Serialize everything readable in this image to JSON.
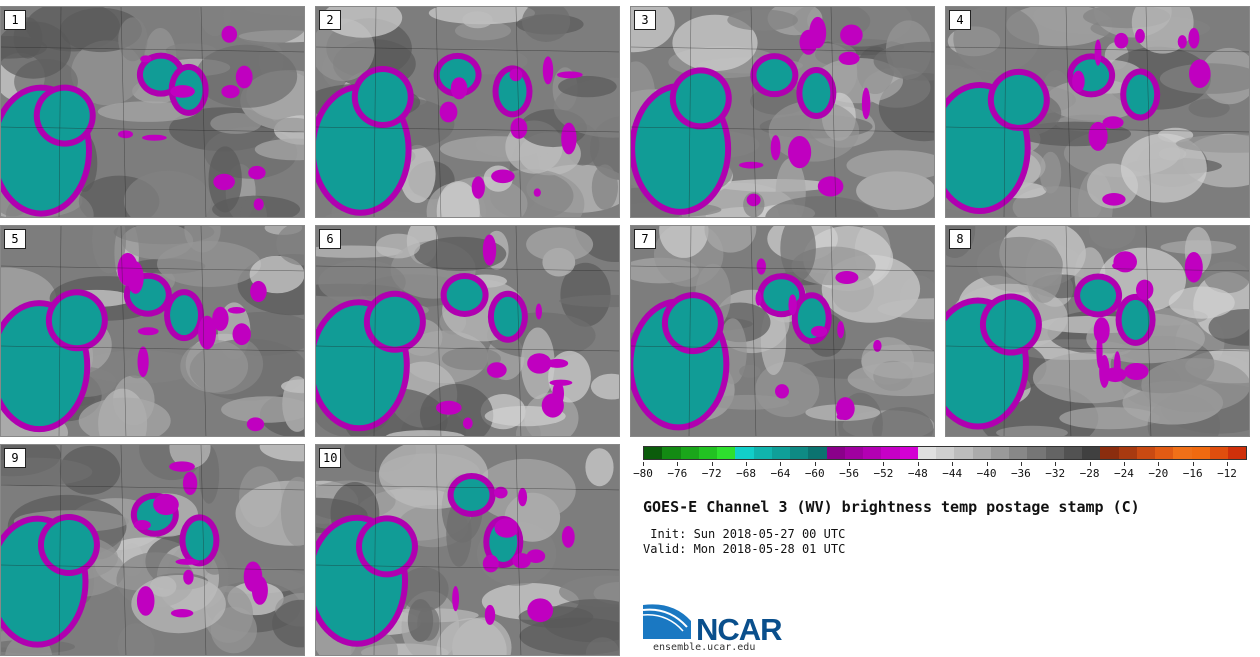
{
  "panels": [
    "1",
    "2",
    "3",
    "4",
    "5",
    "6",
    "7",
    "8",
    "9",
    "10"
  ],
  "colorbar": {
    "colors": [
      "#0b5c0b",
      "#138a13",
      "#1aa61a",
      "#22c222",
      "#2ee02e",
      "#11cfc9",
      "#10b4ad",
      "#0f9f98",
      "#0e8a84",
      "#0b7370",
      "#8a008a",
      "#a000a0",
      "#b300b3",
      "#c600c6",
      "#d400d4",
      "#e0e0e0",
      "#cfcfcf",
      "#bdbdbd",
      "#ababab",
      "#9a9a9a",
      "#888888",
      "#767676",
      "#646464",
      "#525252",
      "#404040",
      "#8b2d0e",
      "#a83a10",
      "#c94a12",
      "#e15b14",
      "#f07018",
      "#f06a10",
      "#e04e0e",
      "#d0300a"
    ],
    "tick_labels": [
      "−80",
      "−76",
      "−72",
      "−68",
      "−64",
      "−60",
      "−56",
      "−52",
      "−48",
      "−44",
      "−40",
      "−36",
      "−32",
      "−28",
      "−24",
      "−20",
      "−16",
      "−12"
    ]
  },
  "title": "GOES-E Channel 3 (WV) brightness temp postage stamp (C)",
  "init": " Init: Sun 2018-05-27 00 UTC",
  "valid": "Valid: Mon 2018-05-28 01 UTC",
  "logo": {
    "name": "NCAR",
    "url": "ensemble.ucar.edu"
  }
}
